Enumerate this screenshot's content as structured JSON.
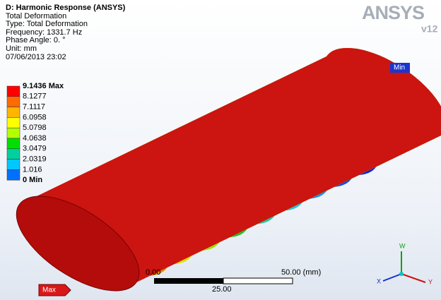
{
  "header": {
    "title": "D: Harmonic Response (ANSYS)",
    "lines": [
      "Total Deformation",
      "Type: Total Deformation",
      "Frequency: 1331.7 Hz",
      "Phase Angle: 0. °",
      "Unit: mm",
      "07/06/2013 23:02"
    ]
  },
  "legend": {
    "labels": [
      "9.1436 Max",
      "8.1277",
      "7.1117",
      "6.0958",
      "5.0798",
      "4.0638",
      "3.0479",
      "2.0319",
      "1.016",
      "0 Min"
    ],
    "colors": [
      "#ff0000",
      "#ff6a00",
      "#ffb400",
      "#ffff00",
      "#b4ff00",
      "#00e000",
      "#00d0a0",
      "#00c8ff",
      "#0070ff"
    ]
  },
  "logo": {
    "name": "ANSYS",
    "version": "v12"
  },
  "probes": {
    "max": "Max",
    "min": "Min"
  },
  "scale_bar": {
    "start": "0.00",
    "end": "50.00 (mm)",
    "middle": "25.00"
  },
  "triad": {
    "w": "W",
    "x": "X",
    "y": "Y"
  }
}
